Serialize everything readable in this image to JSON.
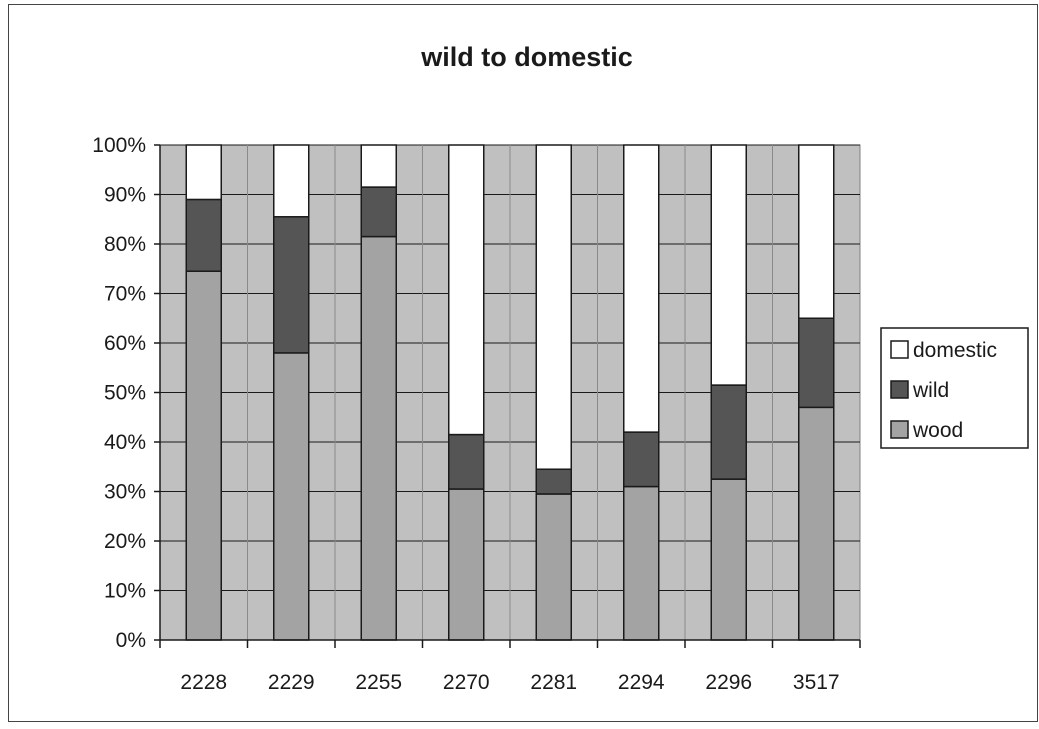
{
  "chart_data": {
    "type": "bar",
    "stacked": true,
    "percent_stacked": true,
    "title": "wild to domestic",
    "categories": [
      "2228",
      "2229",
      "2255",
      "2270",
      "2281",
      "2294",
      "2296",
      "3517"
    ],
    "series": [
      {
        "name": "wood",
        "color": "#a3a3a3",
        "values": [
          74.5,
          58,
          81.5,
          30.5,
          29.5,
          31,
          32.5,
          47
        ]
      },
      {
        "name": "wild",
        "color": "#555555",
        "values": [
          14.5,
          27.5,
          10,
          11,
          5,
          11,
          19,
          18
        ]
      },
      {
        "name": "domestic",
        "color": "#ffffff",
        "values": [
          11,
          14.5,
          8.5,
          58.5,
          65.5,
          58,
          48.5,
          35
        ]
      }
    ],
    "legend_order": [
      "domestic",
      "wild",
      "wood"
    ],
    "y_ticks": [
      "0%",
      "10%",
      "20%",
      "30%",
      "40%",
      "50%",
      "60%",
      "70%",
      "80%",
      "90%",
      "100%"
    ],
    "ylim": [
      0,
      100
    ],
    "grid": true,
    "legend": "right",
    "plot_background": "#c0c0c0"
  }
}
